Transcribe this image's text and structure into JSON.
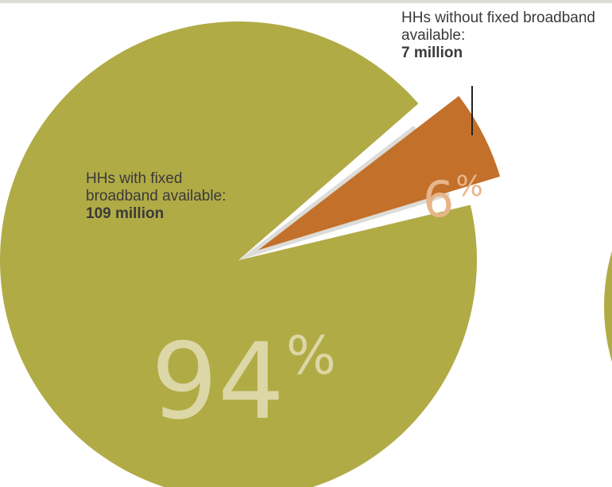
{
  "chart_data": {
    "type": "pie",
    "title": "",
    "slices": [
      {
        "label": "HHs with fixed broadband available:",
        "households": "109 million",
        "value": 94,
        "value_text": "94",
        "unit": "%",
        "color": "#b1ab46",
        "text_color": "#dcd7a6"
      },
      {
        "label": "HHs without fixed broadband available:",
        "households": "7 million",
        "value": 6,
        "value_text": "6",
        "unit": "%",
        "color": "#c3702a",
        "text_color": "#e7b58a"
      }
    ],
    "separator_color": "#dcdcd8",
    "partial_pie_color": "#b1ab46"
  }
}
